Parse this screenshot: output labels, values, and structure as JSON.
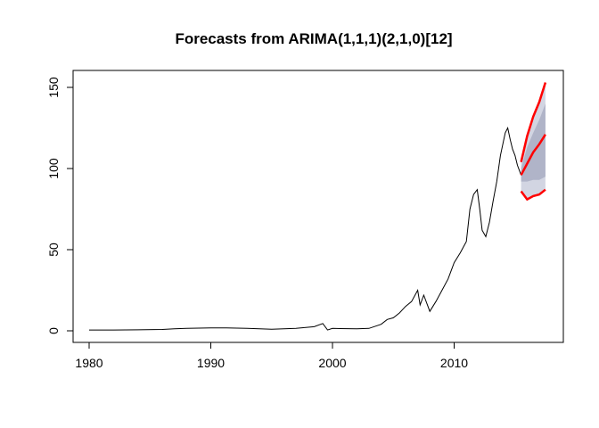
{
  "chart_data": {
    "type": "line",
    "title": "Forecasts from ARIMA(1,1,1)(2,1,0)[12]",
    "xlabel": "",
    "ylabel": "",
    "xlim": [
      1980,
      2018
    ],
    "ylim": [
      0,
      150
    ],
    "x_ticks": [
      1980,
      1990,
      2000,
      2010
    ],
    "y_ticks": [
      0,
      50,
      100,
      150
    ],
    "grid": false,
    "colors": {
      "history": "#000000",
      "interval_80": "#b0b4c8",
      "interval_95": "#d2d5e2",
      "forecast_lines": "#ff0000"
    },
    "series": [
      {
        "role": "history",
        "x": [
          1980.0,
          1982.0,
          1984.0,
          1986.0,
          1987.0,
          1988.0,
          1990.0,
          1991.0,
          1993.0,
          1995.0,
          1997.0,
          1998.5,
          1999.2,
          1999.6,
          2000.0,
          2002.0,
          2003.0,
          2004.0,
          2004.5,
          2005.0,
          2005.5,
          2006.0,
          2006.5,
          2007.0,
          2007.2,
          2007.5,
          2008.0,
          2008.5,
          2009.0,
          2009.5,
          2010.0,
          2010.5,
          2011.0,
          2011.3,
          2011.6,
          2011.9,
          2012.1,
          2012.3,
          2012.6,
          2012.9,
          2013.2,
          2013.5,
          2013.8,
          2014.0,
          2014.2,
          2014.4,
          2014.6,
          2014.8,
          2015.0,
          2015.2,
          2015.5
        ],
        "y": [
          0.5,
          0.5,
          0.6,
          0.8,
          1.2,
          1.5,
          1.8,
          1.8,
          1.5,
          1.0,
          1.5,
          2.5,
          4.5,
          0.5,
          1.5,
          1.2,
          1.5,
          4.0,
          7.0,
          8.0,
          11.0,
          15.0,
          18.0,
          25.0,
          16.0,
          22.0,
          12.0,
          18.0,
          25.0,
          32.0,
          42.0,
          48.0,
          55.0,
          75.0,
          84.0,
          87.0,
          75.0,
          62.0,
          58.0,
          67.0,
          80.0,
          92.0,
          108.0,
          115.0,
          122.0,
          125.0,
          118.0,
          112.0,
          108.0,
          102.0,
          96.0
        ]
      },
      {
        "role": "forecast",
        "x": [
          2015.5,
          2016.0,
          2016.5,
          2017.0,
          2017.5
        ],
        "mean": [
          96.0,
          103.0,
          110.0,
          115.0,
          121.0
        ],
        "lo80": [
          92.0,
          92.0,
          93.0,
          93.0,
          95.0
        ],
        "hi80": [
          100.0,
          113.0,
          122.0,
          130.0,
          140.0
        ],
        "lo95": [
          86.0,
          81.0,
          83.0,
          84.0,
          87.0
        ],
        "hi95": [
          104.0,
          120.0,
          132.0,
          141.0,
          153.0
        ]
      }
    ]
  }
}
